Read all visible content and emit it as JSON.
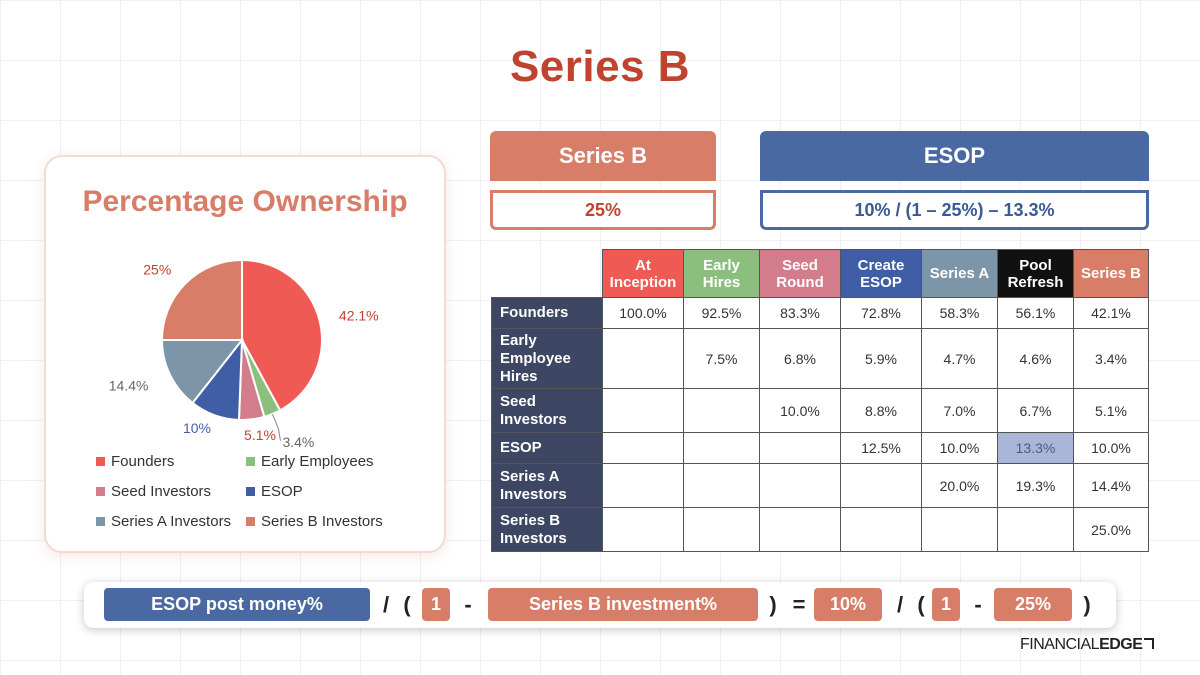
{
  "title": "Series B",
  "chart_data": {
    "type": "pie",
    "title": "Percentage Ownership",
    "categories": [
      "Founders",
      "Early Employees",
      "Seed Investors",
      "ESOP",
      "Series A Investors",
      "Series B Investors"
    ],
    "values": [
      42.1,
      3.4,
      5.1,
      10,
      14.4,
      25
    ],
    "value_labels": [
      "42.1%",
      "3.4%",
      "5.1%",
      "10%",
      "14.4%",
      "25%"
    ],
    "colors": [
      "#f05a55",
      "#8cbf7e",
      "#d27c8c",
      "#3f5ea5",
      "#7d95a8",
      "#d77d68"
    ],
    "legend_position": "bottom"
  },
  "series_b_box": {
    "header": "Series B",
    "value": "25%"
  },
  "esop_box": {
    "header": "ESOP",
    "value": "10% / (1 – 25%) – 13.3%"
  },
  "cap_table": {
    "columns": [
      {
        "label": "At Inception",
        "color": "#f05a55"
      },
      {
        "label": "Early Hires",
        "color": "#8cbf7e"
      },
      {
        "label": "Seed Round",
        "color": "#d27c8c"
      },
      {
        "label": "Create ESOP",
        "color": "#3f5ea5"
      },
      {
        "label": "Series A",
        "color": "#7d95a8"
      },
      {
        "label": "Pool Refresh",
        "color": "#111111"
      },
      {
        "label": "Series B",
        "color": "#d77d68"
      }
    ],
    "rows": [
      {
        "label": "Founders",
        "values": [
          "100.0%",
          "92.5%",
          "83.3%",
          "72.8%",
          "58.3%",
          "56.1%",
          "42.1%"
        ]
      },
      {
        "label": "Early Employee Hires",
        "values": [
          "",
          "7.5%",
          "6.8%",
          "5.9%",
          "4.7%",
          "4.6%",
          "3.4%"
        ]
      },
      {
        "label": "Seed Investors",
        "values": [
          "",
          "",
          "10.0%",
          "8.8%",
          "7.0%",
          "6.7%",
          "5.1%"
        ]
      },
      {
        "label": "ESOP",
        "values": [
          "",
          "",
          "",
          "12.5%",
          "10.0%",
          "13.3%",
          "10.0%"
        ]
      },
      {
        "label": "Series A Investors",
        "values": [
          "",
          "",
          "",
          "",
          "20.0%",
          "19.3%",
          "14.4%"
        ]
      },
      {
        "label": "Series B Investors",
        "values": [
          "",
          "",
          "",
          "",
          "",
          "",
          "25.0%"
        ]
      }
    ],
    "highlight": {
      "row": 3,
      "col": 5,
      "color": "#a9b6d8"
    }
  },
  "formula": {
    "esop_label": "ESOP post money%",
    "div1": "/",
    "open1": "(",
    "one1": "1",
    "minus1": "-",
    "sb_label": "Series B investment%",
    "close1": ")",
    "equals": "=",
    "esop_value": "10%",
    "div2": "/",
    "open2": "(",
    "one2": "1",
    "minus2": "-",
    "sb_value": "25%",
    "close2": ")"
  },
  "brand": {
    "light": "FINANCIAL",
    "bold": "EDGE"
  },
  "colors": {
    "accent_red": "#c0432f",
    "salmon": "#d77d68",
    "navy": "#4a69a3",
    "row_header": "#3d4663"
  }
}
